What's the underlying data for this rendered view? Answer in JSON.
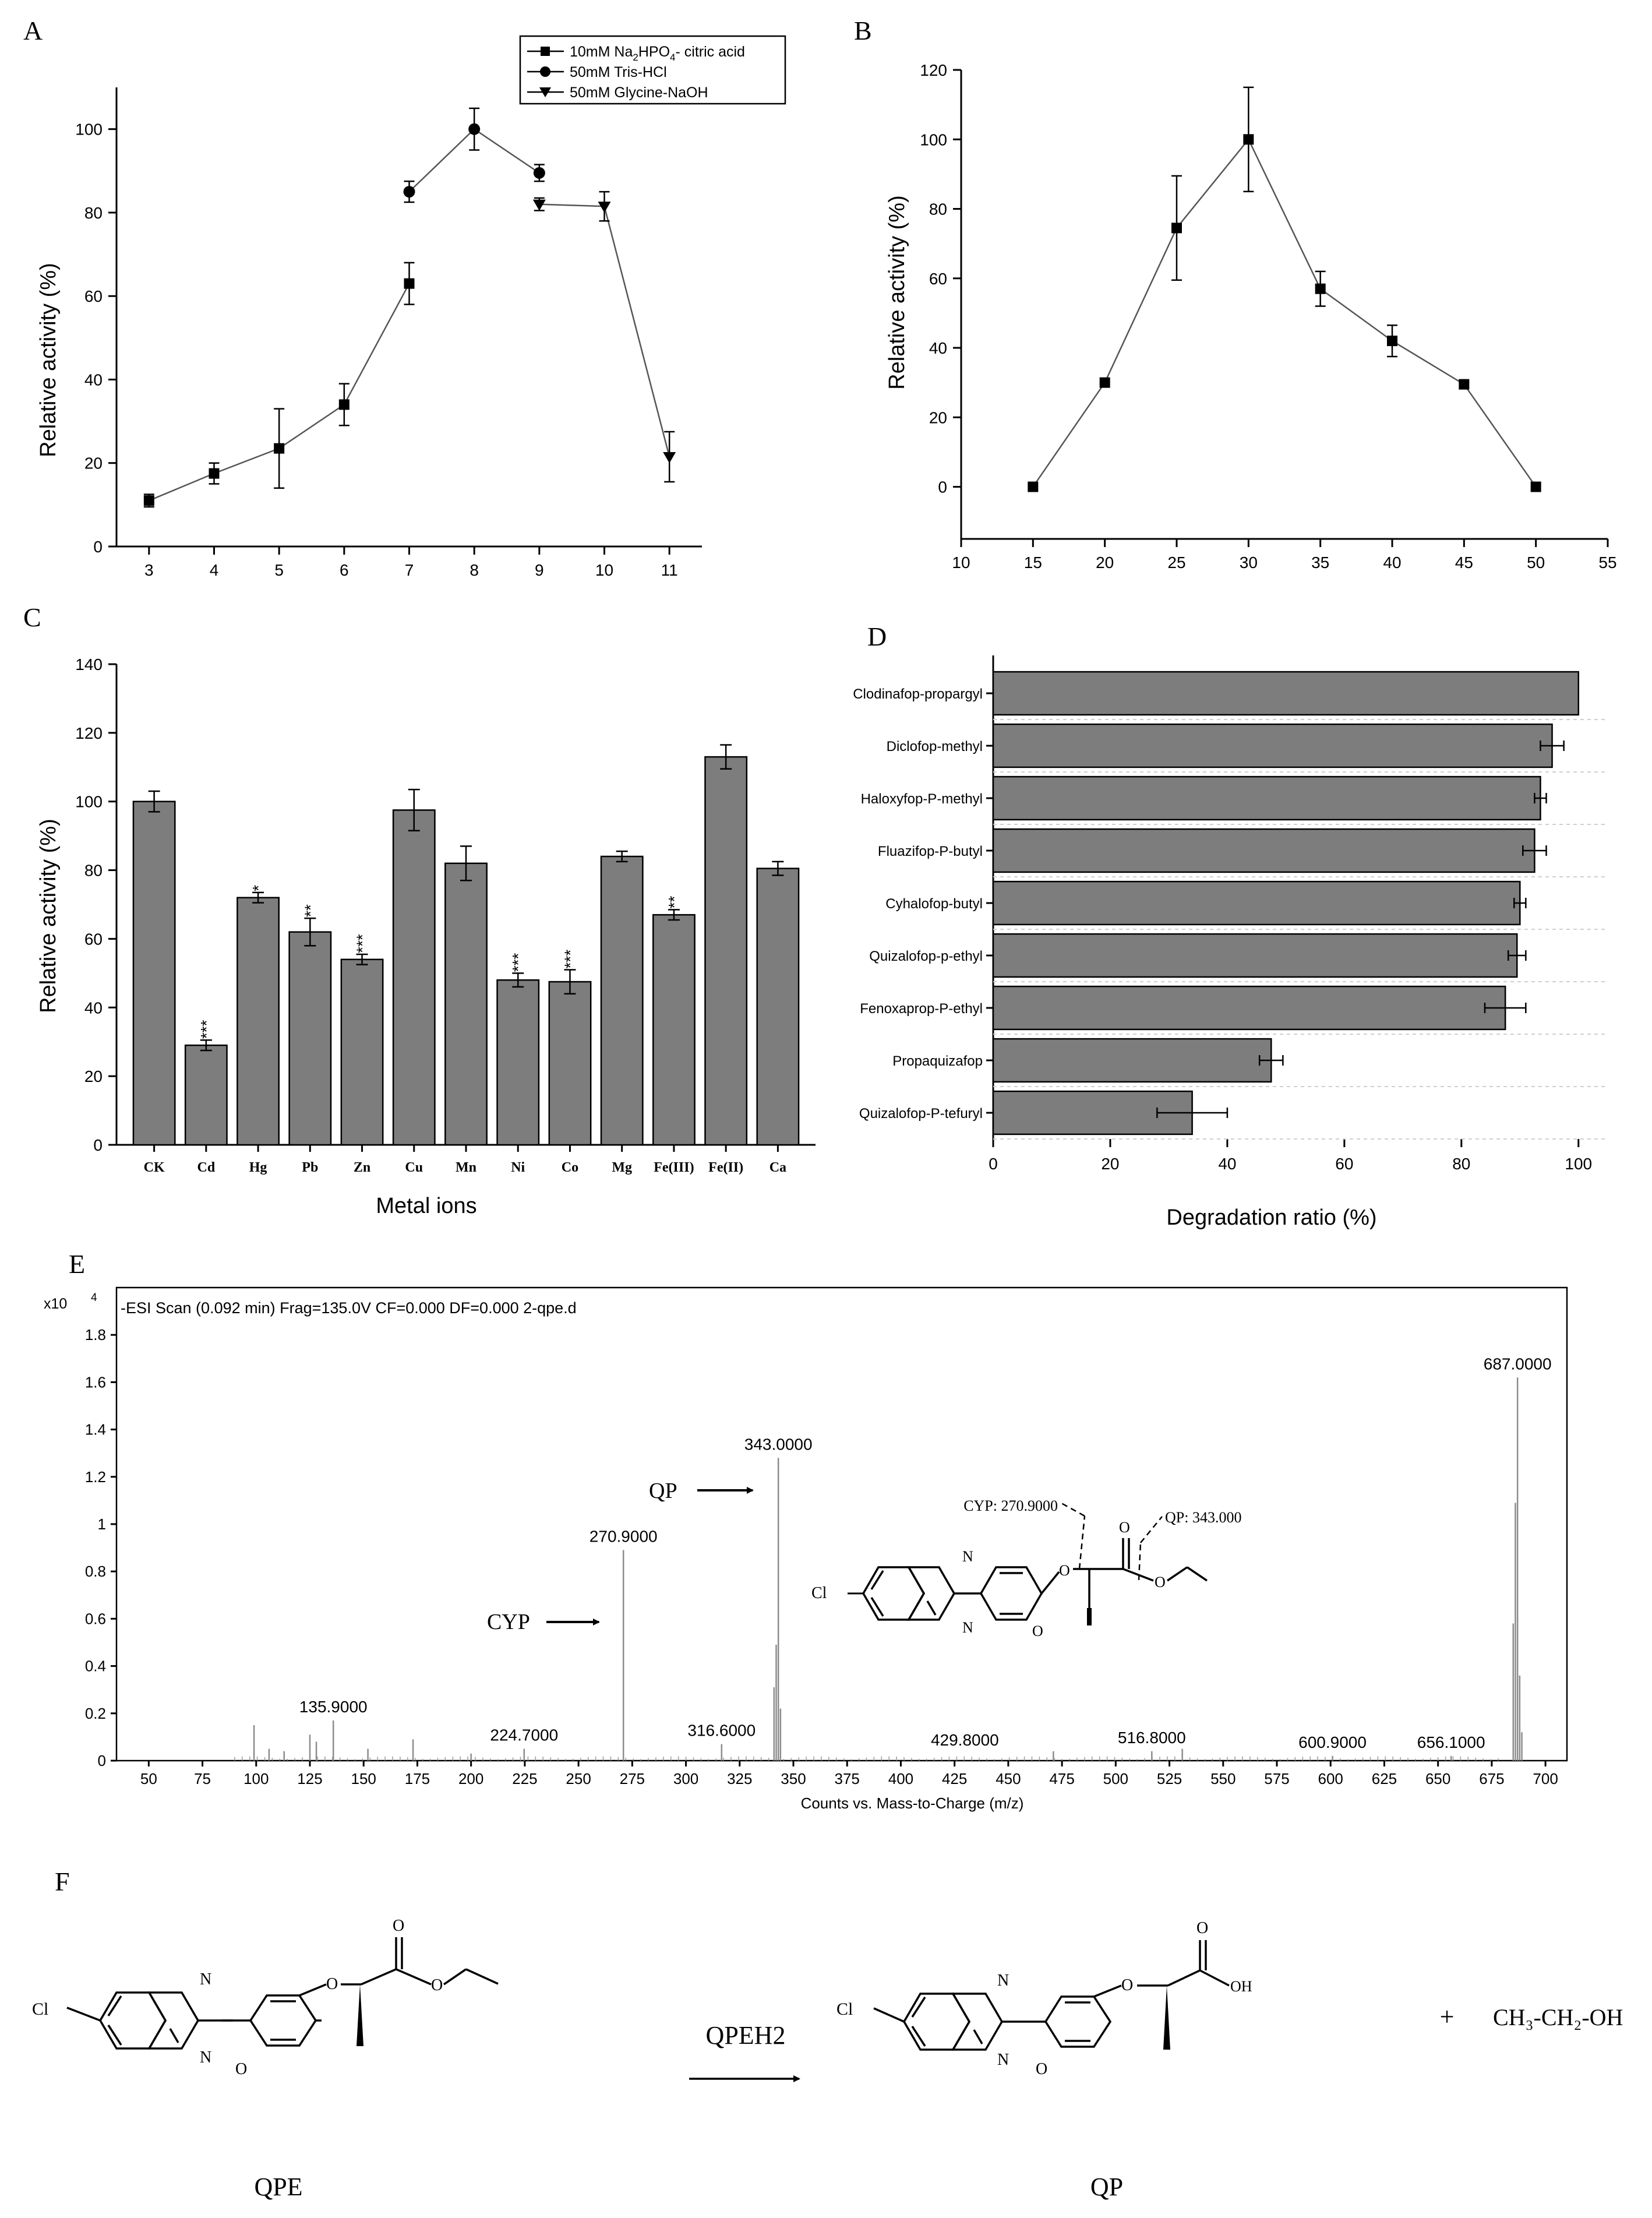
{
  "panels": {
    "A": "A",
    "B": "B",
    "C": "C",
    "D": "D",
    "E": "E",
    "F": "F"
  },
  "chart_data": [
    {
      "id": "A",
      "type": "line",
      "title": "",
      "xlabel": "",
      "ylabel": "Relative activity (%)",
      "xlim": [
        2.5,
        11.5
      ],
      "ylim": [
        0,
        110
      ],
      "xticks": [
        "3",
        "4",
        "5",
        "6",
        "7",
        "8",
        "9",
        "10",
        "11"
      ],
      "yticks": [
        "0",
        "20",
        "40",
        "60",
        "80",
        "100"
      ],
      "series": [
        {
          "name": "10mM Na2HPO4- citric acid",
          "legend_main": "10mM Na",
          "legend_sub": "2",
          "legend_mid": "HPO",
          "legend_sub2": "4",
          "legend_tail": "- citric acid",
          "marker": "square",
          "points": [
            [
              3,
              11
            ],
            [
              4,
              17.5
            ],
            [
              5,
              23.5
            ],
            [
              6,
              34
            ],
            [
              7,
              63
            ]
          ],
          "errors": [
            1.5,
            2.5,
            9.5,
            5,
            5
          ]
        },
        {
          "name": "50mM Tris-HCl",
          "marker": "circle",
          "points": [
            [
              7,
              85
            ],
            [
              8,
              100
            ],
            [
              9,
              89.5
            ]
          ],
          "errors": [
            2.5,
            5,
            2
          ]
        },
        {
          "name": "50mM Glycine-NaOH",
          "marker": "triangle",
          "points": [
            [
              9,
              82
            ],
            [
              10,
              81.5
            ],
            [
              11,
              21.5
            ]
          ],
          "errors": [
            1.5,
            3.5,
            6
          ]
        }
      ]
    },
    {
      "id": "B",
      "type": "line",
      "title": "",
      "xlabel": "",
      "ylabel": "Relative activity (%)",
      "xlim": [
        10,
        55
      ],
      "ylim": [
        -15,
        120
      ],
      "xticks": [
        "10",
        "15",
        "20",
        "25",
        "30",
        "35",
        "40",
        "45",
        "50",
        "55"
      ],
      "yticks": [
        "0",
        "20",
        "40",
        "60",
        "80",
        "100",
        "120"
      ],
      "series": [
        {
          "name": "activity",
          "marker": "square",
          "points": [
            [
              15,
              0
            ],
            [
              20,
              30
            ],
            [
              25,
              74.5
            ],
            [
              30,
              100
            ],
            [
              35,
              57
            ],
            [
              40,
              42
            ],
            [
              45,
              29.5
            ],
            [
              50,
              0
            ]
          ],
          "errors": [
            0,
            0,
            15,
            15,
            5,
            4.5,
            0,
            0
          ]
        }
      ]
    },
    {
      "id": "C",
      "type": "bar",
      "title": "",
      "xlabel": "Metal ions",
      "ylabel": "Relative activity (%)",
      "ylim": [
        0,
        140
      ],
      "yticks": [
        "0",
        "20",
        "40",
        "60",
        "80",
        "100",
        "120",
        "140"
      ],
      "categories": [
        "CK",
        "Cd",
        "Hg",
        "Pb",
        "Zn",
        "Cu",
        "Mn",
        "Ni",
        "Co",
        "Mg",
        "Fe(III)",
        "Fe(II)",
        "Ca"
      ],
      "values": [
        100,
        29,
        72,
        62,
        54,
        97.5,
        82,
        48,
        47.5,
        84,
        67,
        113,
        80.5
      ],
      "errors": [
        3,
        1.5,
        1.5,
        4,
        1.5,
        6,
        5,
        2,
        3.5,
        1.5,
        1.5,
        3.5,
        2
      ],
      "significance": [
        "",
        "***",
        "*",
        "**",
        "***",
        "",
        "",
        "***",
        "***",
        "",
        "**",
        "",
        ""
      ]
    },
    {
      "id": "D",
      "type": "bar",
      "orientation": "horizontal",
      "title": "",
      "xlabel": "Degradation ratio (%)",
      "ylabel": "",
      "xlim": [
        0,
        105
      ],
      "xticks": [
        "0",
        "20",
        "40",
        "60",
        "80",
        "100"
      ],
      "categories": [
        "Clodinafop-propargyl",
        "Diclofop-methyl",
        "Haloxyfop-P-methyl",
        "Fluazifop-P-butyl",
        "Cyhalofop-butyl",
        "Quizalofop-p-ethyl",
        "Fenoxaprop-P-ethyl",
        "Propaquizafop",
        "Quizalofop-P-tefuryl"
      ],
      "values": [
        100,
        95.5,
        93.5,
        92.5,
        90,
        89.5,
        87.5,
        47.5,
        34
      ],
      "errors": [
        0,
        2,
        1,
        2,
        1,
        1.5,
        3.5,
        2,
        6
      ]
    },
    {
      "id": "E",
      "type": "line",
      "subtype": "mass-spectrum",
      "title": "-ESI Scan (0.092 min) Frag=135.0V CF=0.000 DF=0.000 2-qpe.d",
      "xlabel": "Counts vs. Mass-to-Charge (m/z)",
      "ylabel": "",
      "y_multiplier": "x10",
      "y_exp": "4",
      "xlim": [
        35,
        710
      ],
      "ylim": [
        0,
        2
      ],
      "xticks": [
        "50",
        "75",
        "100",
        "125",
        "150",
        "175",
        "200",
        "225",
        "250",
        "275",
        "300",
        "325",
        "350",
        "375",
        "400",
        "425",
        "450",
        "475",
        "500",
        "525",
        "550",
        "575",
        "600",
        "625",
        "650",
        "675",
        "700"
      ],
      "yticks": [
        "0",
        "0.2",
        "0.4",
        "0.6",
        "0.8",
        "1",
        "1.2",
        "1.4",
        "1.6",
        "1.8"
      ],
      "peaks": [
        [
          99,
          0.15
        ],
        [
          106,
          0.05
        ],
        [
          113,
          0.04
        ],
        [
          125,
          0.11
        ],
        [
          128,
          0.08
        ],
        [
          135.9,
          0.17
        ],
        [
          152,
          0.05
        ],
        [
          173,
          0.09
        ],
        [
          200,
          0.03
        ],
        [
          224.7,
          0.05
        ],
        [
          270.9,
          0.89
        ],
        [
          316.6,
          0.07
        ],
        [
          341,
          0.31
        ],
        [
          342,
          0.49
        ],
        [
          343,
          1.28
        ],
        [
          344,
          0.22
        ],
        [
          471,
          0.04
        ],
        [
          516.8,
          0.04
        ],
        [
          531,
          0.05
        ],
        [
          600.9,
          0.02
        ],
        [
          656.1,
          0.02
        ],
        [
          685,
          0.58
        ],
        [
          686,
          1.09
        ],
        [
          687,
          1.62
        ],
        [
          688,
          0.36
        ],
        [
          689,
          0.12
        ]
      ],
      "peak_labels": [
        {
          "mz": 135.9,
          "label": "135.9000",
          "y": 0.17
        },
        {
          "mz": 224.7,
          "label": "224.7000",
          "y": 0.05
        },
        {
          "mz": 270.9,
          "label": "270.9000",
          "y": 0.89
        },
        {
          "mz": 316.6,
          "label": "316.6000",
          "y": 0.07
        },
        {
          "mz": 343,
          "label": "343.0000",
          "y": 1.28
        },
        {
          "mz": 429.8,
          "label": "429.8000",
          "y": 0.03
        },
        {
          "mz": 516.8,
          "label": "516.8000",
          "y": 0.04
        },
        {
          "mz": 600.9,
          "label": "600.9000",
          "y": 0.02
        },
        {
          "mz": 656.1,
          "label": "656.1000",
          "y": 0.02
        },
        {
          "mz": 687,
          "label": "687.0000",
          "y": 1.62
        }
      ],
      "arrows": [
        {
          "label": "QP",
          "mz": 343
        },
        {
          "label": "CYP",
          "mz": 270.9
        }
      ],
      "structure_labels": {
        "cyp": "CYP: 270.9000",
        "qp": "QP: 343.000",
        "cl": "Cl",
        "n": "N",
        "o": "O"
      }
    }
  ],
  "scheme_F": {
    "reactant": "QPE",
    "enzyme": "QPEH2",
    "product": "QP",
    "plus": "+",
    "byproduct": "CH₃-CH₂-OH",
    "atoms": {
      "cl": "Cl",
      "n": "N",
      "o": "O",
      "oh": "OH"
    }
  }
}
